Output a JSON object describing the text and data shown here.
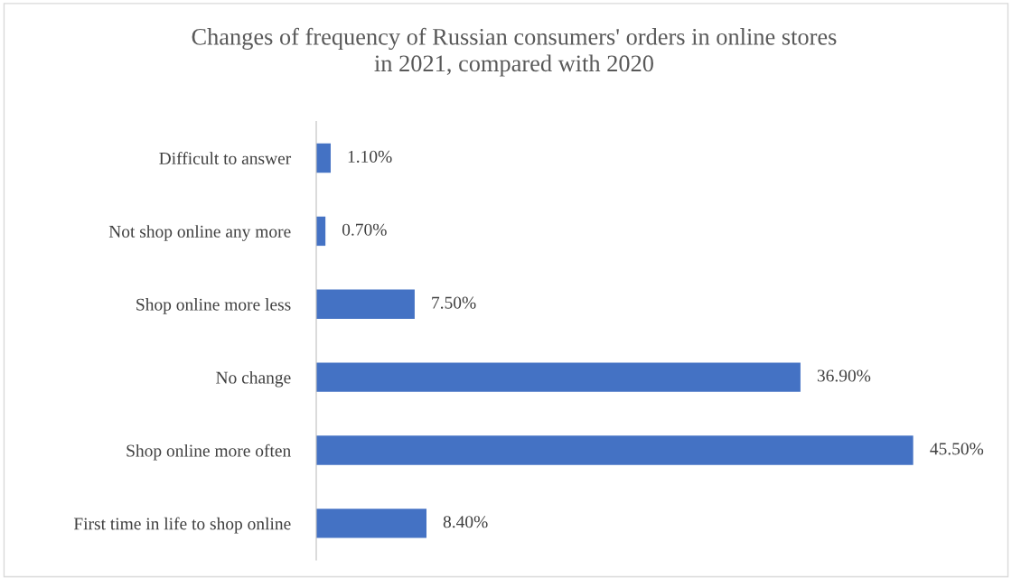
{
  "chart_data": {
    "type": "bar",
    "orientation": "horizontal",
    "title": "Changes of frequency of Russian consumers' orders in online stores\nin 2021, compared with 2020",
    "categories": [
      "Difficult to answer",
      "Not shop online any more",
      "Shop online more less",
      "No change",
      "Shop online more often",
      "First time in life to shop online"
    ],
    "values": [
      1.1,
      0.7,
      7.5,
      36.9,
      45.5,
      8.4
    ],
    "value_labels": [
      "1.10%",
      "0.70%",
      "7.50%",
      "36.90%",
      "45.50%",
      "8.40%"
    ],
    "color": "#4472c4",
    "grid": false,
    "legend": false
  }
}
